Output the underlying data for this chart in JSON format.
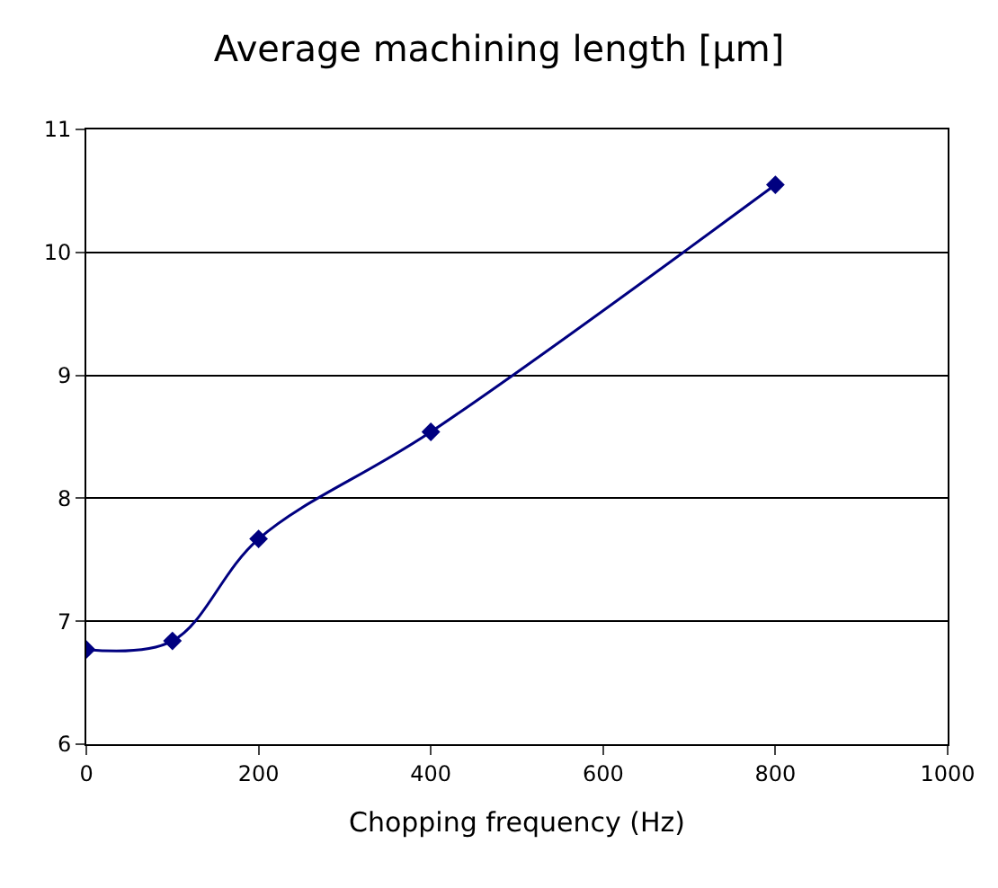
{
  "chart_data": {
    "type": "line",
    "title": "Average machining length [µm]",
    "xlabel": "Chopping frequency (Hz)",
    "x": [
      0,
      100,
      200,
      400,
      800
    ],
    "series": [
      {
        "color": "#000080",
        "values": [
          6.77,
          6.84,
          7.67,
          8.54,
          10.55
        ]
      }
    ],
    "xlim": [
      0,
      1000
    ],
    "xticks": [
      0,
      200,
      400,
      600,
      800,
      1000
    ],
    "ylim": [
      6,
      11
    ],
    "yticks": [
      6,
      7,
      8,
      9,
      10,
      11
    ],
    "grid": "y",
    "marker": "diamond",
    "line_style": "solid"
  }
}
